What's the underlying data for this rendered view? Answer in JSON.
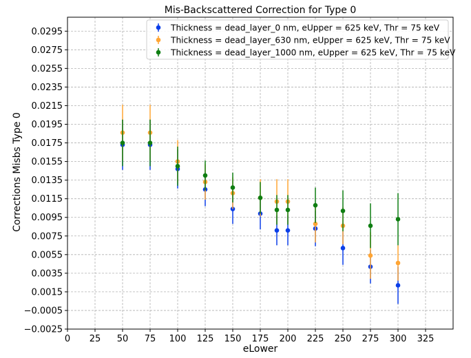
{
  "chart_data": {
    "type": "scatter",
    "title": "Mis-Backscattered Correction for Type 0",
    "xlabel": "eLower",
    "ylabel": "Corrections Misbs Type 0",
    "xlim": [
      0,
      350
    ],
    "ylim": [
      -0.0025,
      0.031
    ],
    "x_ticks": [
      "0",
      "25",
      "50",
      "75",
      "100",
      "125",
      "150",
      "175",
      "200",
      "225",
      "250",
      "275",
      "300",
      "325"
    ],
    "y_ticks": [
      "−0.0025",
      "−0.0005",
      "0.0015",
      "0.0035",
      "0.0055",
      "0.0075",
      "0.0095",
      "0.0115",
      "0.0135",
      "0.0155",
      "0.0175",
      "0.0195",
      "0.0215",
      "0.0235",
      "0.0255",
      "0.0275",
      "0.0295"
    ],
    "grid": true,
    "legend_position": "top-right",
    "series": [
      {
        "name": "Thickness = dead_layer_0 nm, eUpper = 625 keV, Thr = 75 keV",
        "color": "#0b3ee8",
        "x": [
          50,
          75,
          100,
          125,
          150,
          175,
          190,
          200,
          225,
          250,
          275,
          300
        ],
        "y": [
          0.0173,
          0.0173,
          0.0147,
          0.0125,
          0.0104,
          0.0099,
          0.0081,
          0.0081,
          0.0083,
          0.0062,
          0.0042,
          0.0022
        ],
        "err": [
          0.0027,
          0.0027,
          0.0021,
          0.0018,
          0.0016,
          0.0017,
          0.0016,
          0.0016,
          0.0019,
          0.0018,
          0.0018,
          0.002
        ]
      },
      {
        "name": "Thickness = dead_layer_630 nm, eUpper = 625 keV, Thr = 75 keV",
        "color": "#ffa534",
        "x": [
          50,
          75,
          100,
          125,
          150,
          175,
          190,
          200,
          225,
          250,
          275,
          300
        ],
        "y": [
          0.0186,
          0.0186,
          0.0155,
          0.0133,
          0.0121,
          0.0116,
          0.0112,
          0.0112,
          0.0088,
          0.0086,
          0.0054,
          0.0046
        ],
        "err": [
          0.003,
          0.003,
          0.0023,
          0.0019,
          0.0017,
          0.002,
          0.0024,
          0.0024,
          0.002,
          0.002,
          0.0025,
          0.0019
        ]
      },
      {
        "name": "Thickness = dead_layer_1000 nm, eUpper = 625 keV, Thr = 75 keV",
        "color": "#0f7e12",
        "x": [
          50,
          75,
          100,
          125,
          150,
          175,
          190,
          200,
          225,
          250,
          275,
          300
        ],
        "y": [
          0.0175,
          0.0175,
          0.015,
          0.014,
          0.0127,
          0.0116,
          0.0103,
          0.0103,
          0.0108,
          0.0102,
          0.0086,
          0.0093
        ],
        "err": [
          0.0025,
          0.0025,
          0.0021,
          0.0016,
          0.0016,
          0.0017,
          0.0016,
          0.0016,
          0.0019,
          0.0022,
          0.0024,
          0.0028
        ]
      }
    ]
  }
}
